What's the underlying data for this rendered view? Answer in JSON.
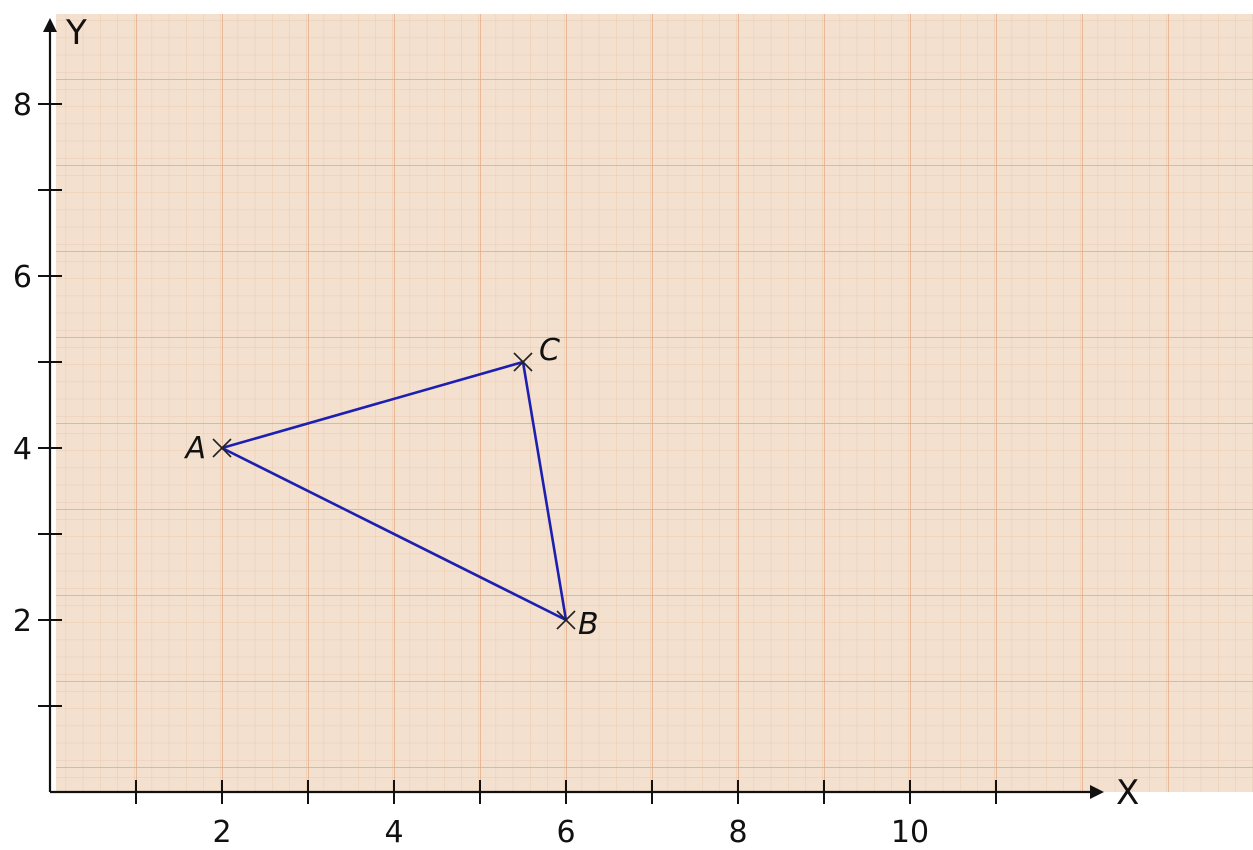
{
  "colors": {
    "paper": "#f4e0ce",
    "grid_minor": "#ecc5a6",
    "grid_major": "#e2a87f",
    "axis": "#111111",
    "triangle": "#1d1fb0",
    "marker": "#222222"
  },
  "chart_data": {
    "type": "scatter",
    "title": "",
    "xlabel": "X",
    "ylabel": "Y",
    "xlim": [
      0,
      13.3
    ],
    "ylim": [
      0,
      9
    ],
    "x_ticks": [
      1,
      2,
      3,
      4,
      5,
      6,
      7,
      8,
      9,
      10,
      11
    ],
    "x_tick_labels": [
      {
        "value": 2,
        "label": "2"
      },
      {
        "value": 4,
        "label": "4"
      },
      {
        "value": 6,
        "label": "6"
      },
      {
        "value": 8,
        "label": "8"
      },
      {
        "value": 10,
        "label": "10"
      }
    ],
    "y_ticks": [
      1,
      2,
      3,
      4,
      5,
      6,
      7,
      8
    ],
    "y_tick_labels": [
      {
        "value": 2,
        "label": "2"
      },
      {
        "value": 4,
        "label": "4"
      },
      {
        "value": 6,
        "label": "6"
      },
      {
        "value": 8,
        "label": "8"
      }
    ],
    "grid": true,
    "points": [
      {
        "label": "A",
        "x": 2,
        "y": 4,
        "label_side": "left"
      },
      {
        "label": "B",
        "x": 6,
        "y": 2,
        "label_side": "right"
      },
      {
        "label": "C",
        "x": 5.5,
        "y": 5,
        "label_side": "upper-right"
      }
    ],
    "polygon": [
      "A",
      "C",
      "B"
    ]
  }
}
